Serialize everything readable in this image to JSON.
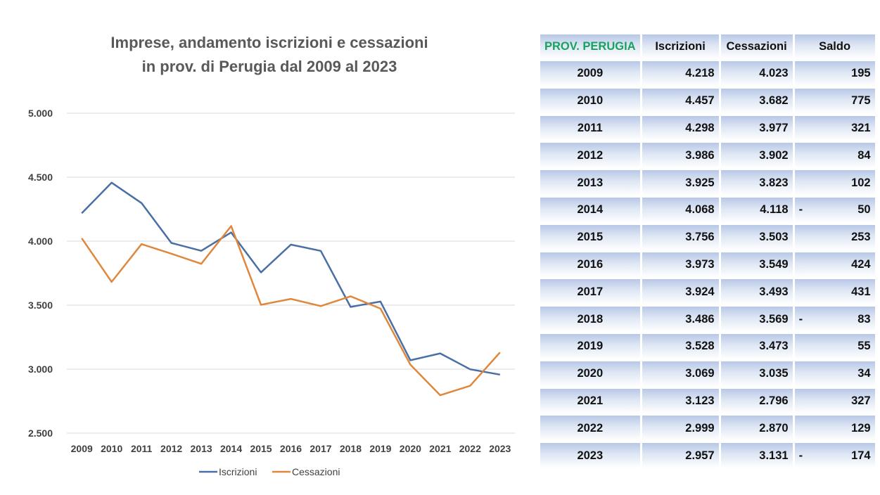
{
  "chart_data": {
    "type": "line",
    "title": [
      "Imprese, andamento iscrizioni e cessazioni",
      "in prov. di Perugia dal 2009 al 2023"
    ],
    "x": [
      "2009",
      "2010",
      "2011",
      "2012",
      "2013",
      "2014",
      "2015",
      "2016",
      "2017",
      "2018",
      "2019",
      "2020",
      "2021",
      "2022",
      "2023"
    ],
    "ylim": [
      2500,
      5000
    ],
    "yticks": [
      2500,
      3000,
      3500,
      4000,
      4500,
      5000
    ],
    "ytick_labels": [
      "2.500",
      "3.000",
      "3.500",
      "4.000",
      "4.500",
      "5.000"
    ],
    "grid": true,
    "legend": "bottom",
    "series": [
      {
        "name": "Iscrizioni",
        "color": "#4a6fa5",
        "values": [
          4218,
          4457,
          4298,
          3986,
          3925,
          4068,
          3756,
          3973,
          3924,
          3486,
          3528,
          3069,
          3123,
          2999,
          2957
        ]
      },
      {
        "name": "Cessazioni",
        "color": "#e0873e",
        "values": [
          4023,
          3682,
          3977,
          3902,
          3823,
          4118,
          3503,
          3549,
          3493,
          3569,
          3473,
          3035,
          2796,
          2870,
          3131
        ]
      }
    ]
  },
  "table": {
    "headers": [
      "PROV. PERUGIA",
      "Iscrizioni",
      "Cessazioni",
      "Saldo"
    ],
    "rows": [
      {
        "year": "2009",
        "iscrizioni": "4.218",
        "cessazioni": "4.023",
        "sign": "",
        "saldo": "195"
      },
      {
        "year": "2010",
        "iscrizioni": "4.457",
        "cessazioni": "3.682",
        "sign": "",
        "saldo": "775"
      },
      {
        "year": "2011",
        "iscrizioni": "4.298",
        "cessazioni": "3.977",
        "sign": "",
        "saldo": "321"
      },
      {
        "year": "2012",
        "iscrizioni": "3.986",
        "cessazioni": "3.902",
        "sign": "",
        "saldo": "84"
      },
      {
        "year": "2013",
        "iscrizioni": "3.925",
        "cessazioni": "3.823",
        "sign": "",
        "saldo": "102"
      },
      {
        "year": "2014",
        "iscrizioni": "4.068",
        "cessazioni": "4.118",
        "sign": "-",
        "saldo": "50"
      },
      {
        "year": "2015",
        "iscrizioni": "3.756",
        "cessazioni": "3.503",
        "sign": "",
        "saldo": "253"
      },
      {
        "year": "2016",
        "iscrizioni": "3.973",
        "cessazioni": "3.549",
        "sign": "",
        "saldo": "424"
      },
      {
        "year": "2017",
        "iscrizioni": "3.924",
        "cessazioni": "3.493",
        "sign": "",
        "saldo": "431"
      },
      {
        "year": "2018",
        "iscrizioni": "3.486",
        "cessazioni": "3.569",
        "sign": "-",
        "saldo": "83"
      },
      {
        "year": "2019",
        "iscrizioni": "3.528",
        "cessazioni": "3.473",
        "sign": "",
        "saldo": "55"
      },
      {
        "year": "2020",
        "iscrizioni": "3.069",
        "cessazioni": "3.035",
        "sign": "",
        "saldo": "34"
      },
      {
        "year": "2021",
        "iscrizioni": "3.123",
        "cessazioni": "2.796",
        "sign": "",
        "saldo": "327"
      },
      {
        "year": "2022",
        "iscrizioni": "2.999",
        "cessazioni": "2.870",
        "sign": "",
        "saldo": "129"
      },
      {
        "year": "2023",
        "iscrizioni": "2.957",
        "cessazioni": "3.131",
        "sign": "-",
        "saldo": "174"
      }
    ]
  }
}
